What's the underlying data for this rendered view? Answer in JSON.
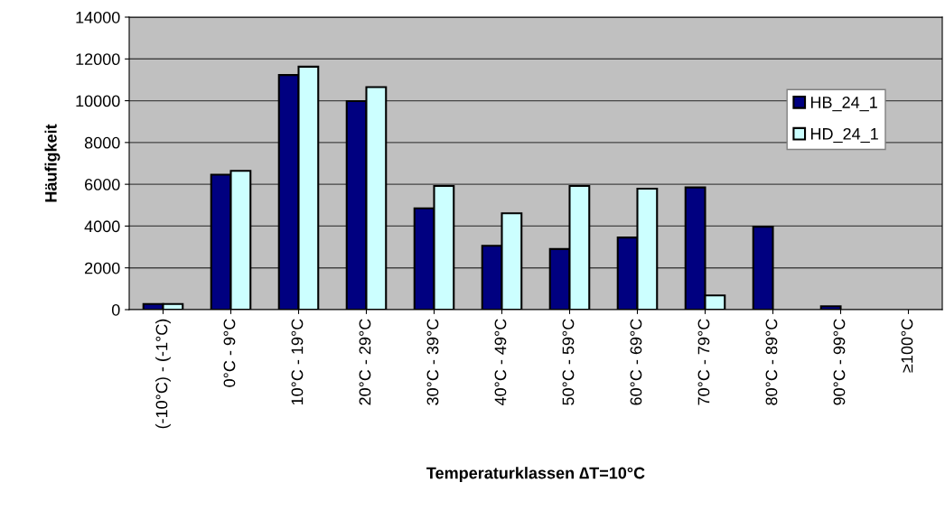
{
  "chart_data": {
    "type": "bar",
    "xlabel": "Temperaturklassen ∆T=10°C",
    "ylabel": "Häufigkeit",
    "categories": [
      "(-10°C) - (-1°C)",
      "0°C - 9°C",
      "10°C - 19°C",
      "20°C - 29°C",
      "30°C - 39°C",
      "40°C - 49°C",
      "50°C - 59°C",
      "60°C - 69°C",
      "70°C - 79°C",
      "80°C - 89°C",
      "90°C - 99°C",
      "≥100°C"
    ],
    "series": [
      {
        "name": "HB_24_1",
        "color": "#000080",
        "values": [
          270,
          6460,
          11230,
          9980,
          4850,
          3060,
          2900,
          3450,
          5850,
          3970,
          160,
          null
        ]
      },
      {
        "name": "HD_24_1",
        "color": "#ccffff",
        "values": [
          270,
          6640,
          11630,
          10650,
          5920,
          4610,
          5920,
          5790,
          680,
          null,
          null,
          null
        ]
      }
    ],
    "ylim": [
      0,
      14000
    ],
    "yticks": [
      0,
      2000,
      4000,
      6000,
      8000,
      10000,
      12000,
      14000
    ],
    "grid": "y",
    "legend": "right"
  }
}
